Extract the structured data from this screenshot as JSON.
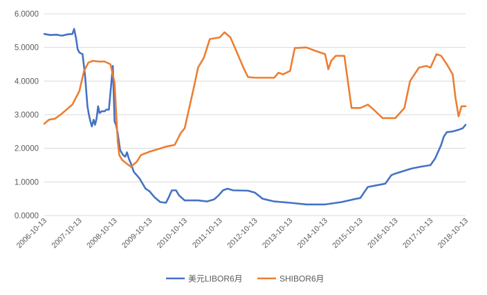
{
  "chart_data": {
    "type": "line",
    "title": "",
    "xlabel": "",
    "ylabel": "",
    "ylim": [
      0,
      6
    ],
    "y_ticks": [
      "0.0000",
      "1.0000",
      "2.0000",
      "3.0000",
      "4.0000",
      "5.0000",
      "6.0000"
    ],
    "x_ticks": [
      "2006-10-13",
      "2007-10-13",
      "2008-10-13",
      "2009-10-13",
      "2010-10-13",
      "2011-10-13",
      "2012-10-13",
      "2013-10-13",
      "2014-10-13",
      "2015-10-13",
      "2016-10-13",
      "2017-10-13",
      "2018-10-13"
    ],
    "xlim": [
      "2006-10-13",
      "2018-10-13"
    ],
    "grid": "horizontal",
    "legend_position": "bottom",
    "series": [
      {
        "name": "美元LIBOR6月",
        "color": "#4472c4",
        "points": [
          [
            "2006-10-13",
            5.4
          ],
          [
            "2006-12-15",
            5.37
          ],
          [
            "2007-02-15",
            5.38
          ],
          [
            "2007-04-15",
            5.35
          ],
          [
            "2007-06-15",
            5.39
          ],
          [
            "2007-08-01",
            5.4
          ],
          [
            "2007-08-20",
            5.55
          ],
          [
            "2007-09-10",
            5.25
          ],
          [
            "2007-09-25",
            4.95
          ],
          [
            "2007-10-13",
            4.85
          ],
          [
            "2007-11-15",
            4.8
          ],
          [
            "2007-12-10",
            4.2
          ],
          [
            "2008-01-05",
            3.25
          ],
          [
            "2008-01-20",
            3.0
          ],
          [
            "2008-02-05",
            2.8
          ],
          [
            "2008-02-20",
            2.65
          ],
          [
            "2008-03-10",
            2.85
          ],
          [
            "2008-03-25",
            2.7
          ],
          [
            "2008-04-10",
            2.9
          ],
          [
            "2008-04-25",
            3.25
          ],
          [
            "2008-05-10",
            3.05
          ],
          [
            "2008-06-01",
            3.1
          ],
          [
            "2008-07-01",
            3.1
          ],
          [
            "2008-07-20",
            3.15
          ],
          [
            "2008-08-15",
            3.15
          ],
          [
            "2008-09-05",
            3.8
          ],
          [
            "2008-09-25",
            4.45
          ],
          [
            "2008-10-13",
            2.8
          ],
          [
            "2008-10-28",
            2.7
          ],
          [
            "2008-11-15",
            2.45
          ],
          [
            "2008-12-10",
            1.95
          ],
          [
            "2009-01-10",
            1.8
          ],
          [
            "2009-02-01",
            1.75
          ],
          [
            "2009-02-20",
            1.88
          ],
          [
            "2009-03-10",
            1.7
          ],
          [
            "2009-04-01",
            1.55
          ],
          [
            "2009-05-01",
            1.3
          ],
          [
            "2009-06-01",
            1.2
          ],
          [
            "2009-07-01",
            1.1
          ],
          [
            "2009-08-01",
            0.95
          ],
          [
            "2009-09-01",
            0.8
          ],
          [
            "2009-10-13",
            0.72
          ],
          [
            "2009-12-01",
            0.55
          ],
          [
            "2010-02-01",
            0.4
          ],
          [
            "2010-04-01",
            0.38
          ],
          [
            "2010-05-01",
            0.55
          ],
          [
            "2010-06-01",
            0.75
          ],
          [
            "2010-07-15",
            0.75
          ],
          [
            "2010-08-15",
            0.6
          ],
          [
            "2010-10-13",
            0.45
          ],
          [
            "2011-03-01",
            0.45
          ],
          [
            "2011-06-01",
            0.42
          ],
          [
            "2011-08-15",
            0.48
          ],
          [
            "2011-10-01",
            0.6
          ],
          [
            "2011-11-15",
            0.75
          ],
          [
            "2012-01-01",
            0.8
          ],
          [
            "2012-03-01",
            0.75
          ],
          [
            "2012-08-01",
            0.74
          ],
          [
            "2012-10-13",
            0.68
          ],
          [
            "2013-01-01",
            0.5
          ],
          [
            "2013-05-01",
            0.42
          ],
          [
            "2013-10-13",
            0.38
          ],
          [
            "2014-04-01",
            0.33
          ],
          [
            "2014-10-13",
            0.33
          ],
          [
            "2015-04-01",
            0.4
          ],
          [
            "2015-09-01",
            0.5
          ],
          [
            "2015-10-13",
            0.52
          ],
          [
            "2016-01-01",
            0.85
          ],
          [
            "2016-04-01",
            0.9
          ],
          [
            "2016-07-01",
            0.95
          ],
          [
            "2016-09-01",
            1.2
          ],
          [
            "2016-10-13",
            1.25
          ],
          [
            "2017-01-01",
            1.32
          ],
          [
            "2017-04-01",
            1.4
          ],
          [
            "2017-07-01",
            1.45
          ],
          [
            "2017-10-13",
            1.5
          ],
          [
            "2017-12-01",
            1.7
          ],
          [
            "2018-02-01",
            2.1
          ],
          [
            "2018-03-01",
            2.35
          ],
          [
            "2018-04-01",
            2.48
          ],
          [
            "2018-06-01",
            2.5
          ],
          [
            "2018-08-01",
            2.55
          ],
          [
            "2018-09-15",
            2.6
          ],
          [
            "2018-10-13",
            2.7
          ]
        ]
      },
      {
        "name": "SHIBOR6月",
        "color": "#ed7d31",
        "points": [
          [
            "2006-10-13",
            2.73
          ],
          [
            "2006-12-01",
            2.85
          ],
          [
            "2007-02-01",
            2.88
          ],
          [
            "2007-04-01",
            3.0
          ],
          [
            "2007-06-01",
            3.15
          ],
          [
            "2007-08-01",
            3.3
          ],
          [
            "2007-10-13",
            3.7
          ],
          [
            "2007-12-01",
            4.3
          ],
          [
            "2008-01-15",
            4.55
          ],
          [
            "2008-03-01",
            4.6
          ],
          [
            "2008-05-01",
            4.58
          ],
          [
            "2008-07-01",
            4.58
          ],
          [
            "2008-09-01",
            4.5
          ],
          [
            "2008-10-13",
            3.95
          ],
          [
            "2008-11-15",
            2.2
          ],
          [
            "2008-12-01",
            1.8
          ],
          [
            "2009-01-01",
            1.65
          ],
          [
            "2009-02-15",
            1.55
          ],
          [
            "2009-04-01",
            1.45
          ],
          [
            "2009-06-01",
            1.6
          ],
          [
            "2009-07-15",
            1.8
          ],
          [
            "2009-10-13",
            1.9
          ],
          [
            "2010-01-15",
            1.98
          ],
          [
            "2010-04-01",
            2.05
          ],
          [
            "2010-07-01",
            2.1
          ],
          [
            "2010-09-01",
            2.45
          ],
          [
            "2010-10-13",
            2.6
          ],
          [
            "2011-01-15",
            3.8
          ],
          [
            "2011-03-01",
            4.4
          ],
          [
            "2011-05-01",
            4.7
          ],
          [
            "2011-07-01",
            5.25
          ],
          [
            "2011-10-13",
            5.3
          ],
          [
            "2011-12-01",
            5.45
          ],
          [
            "2012-02-01",
            5.3
          ],
          [
            "2012-04-01",
            4.9
          ],
          [
            "2012-06-15",
            4.4
          ],
          [
            "2012-08-01",
            4.12
          ],
          [
            "2012-10-13",
            4.1
          ],
          [
            "2013-05-01",
            4.1
          ],
          [
            "2013-06-15",
            4.25
          ],
          [
            "2013-08-01",
            4.2
          ],
          [
            "2013-10-13",
            4.3
          ],
          [
            "2013-12-01",
            4.98
          ],
          [
            "2014-04-01",
            5.0
          ],
          [
            "2014-07-01",
            4.9
          ],
          [
            "2014-10-13",
            4.8
          ],
          [
            "2014-11-15",
            4.35
          ],
          [
            "2014-12-15",
            4.6
          ],
          [
            "2015-02-01",
            4.75
          ],
          [
            "2015-05-01",
            4.75
          ],
          [
            "2015-07-15",
            3.2
          ],
          [
            "2015-10-13",
            3.2
          ],
          [
            "2016-01-01",
            3.3
          ],
          [
            "2016-03-01",
            3.15
          ],
          [
            "2016-06-01",
            2.9
          ],
          [
            "2016-10-13",
            2.9
          ],
          [
            "2017-01-15",
            3.2
          ],
          [
            "2017-03-15",
            4.0
          ],
          [
            "2017-06-15",
            4.4
          ],
          [
            "2017-09-01",
            4.45
          ],
          [
            "2017-10-13",
            4.4
          ],
          [
            "2017-12-15",
            4.8
          ],
          [
            "2018-02-01",
            4.75
          ],
          [
            "2018-04-01",
            4.5
          ],
          [
            "2018-06-01",
            4.2
          ],
          [
            "2018-07-01",
            3.5
          ],
          [
            "2018-08-01",
            2.95
          ],
          [
            "2018-09-01",
            3.25
          ],
          [
            "2018-10-13",
            3.25
          ]
        ]
      }
    ]
  }
}
